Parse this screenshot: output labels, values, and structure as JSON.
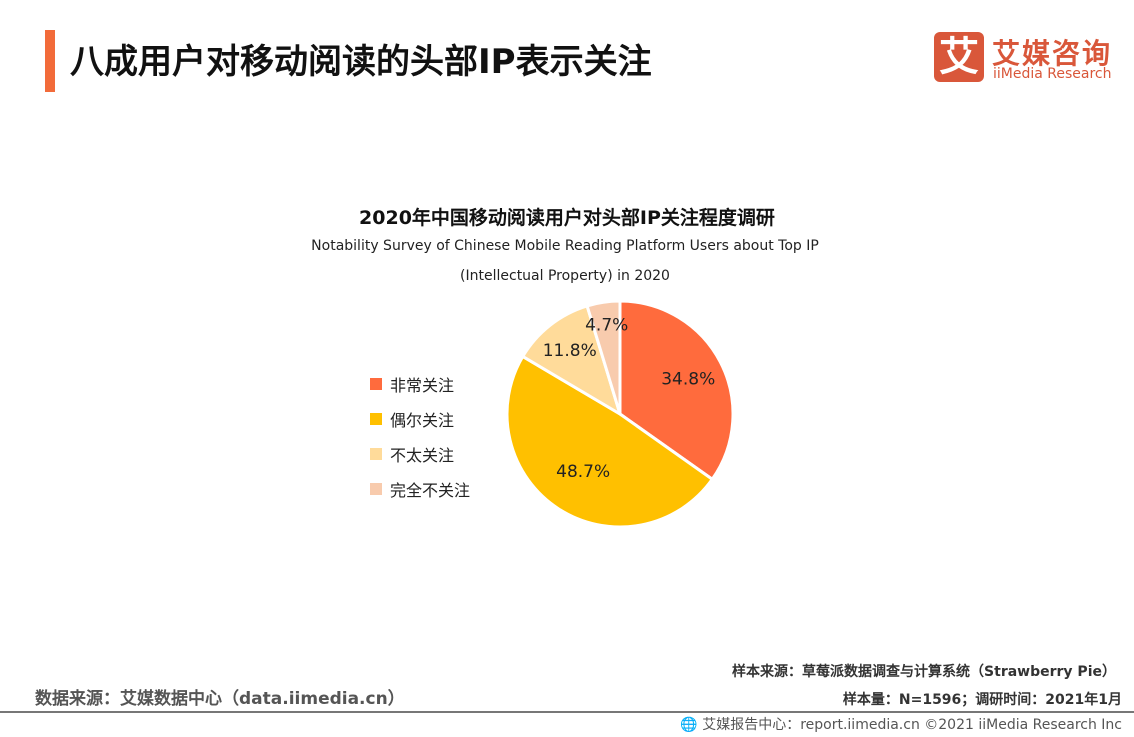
{
  "header": {
    "title": "八成用户对移动阅读的头部IP表示关注",
    "logo_mark": "艾",
    "logo_cn": "艾媒咨询",
    "logo_en": "iiMedia Research"
  },
  "chart_data": {
    "type": "pie",
    "title": "2020年中国移动阅读用户对头部IP关注程度调研",
    "subtitle_line1": "Notability Survey of  Chinese Mobile Reading Platform Users about Top IP",
    "subtitle_line2": "(Intellectual Property) in 2020",
    "legend_position": "left",
    "slices": [
      {
        "label": "非常关注",
        "value": 34.8,
        "text": "34.8%",
        "color": "#FF6B3D"
      },
      {
        "label": "偶尔关注",
        "value": 48.7,
        "text": "48.7%",
        "color": "#FFC000"
      },
      {
        "label": "不太关注",
        "value": 11.8,
        "text": "11.8%",
        "color": "#FFDB9A"
      },
      {
        "label": "完全不关注",
        "value": 4.7,
        "text": "4.7%",
        "color": "#F8CBAD"
      }
    ]
  },
  "footer": {
    "sample_source": "样本来源：草莓派数据调查与计算系统（Strawberry Pie）",
    "sample_size": "样本量：N=1596；调研时间：2021年1月",
    "data_source": "数据来源：艾媒数据中心（data.iimedia.cn）",
    "report_center": "艾媒报告中心：report.iimedia.cn   ©2021  iiMedia Research  Inc"
  }
}
